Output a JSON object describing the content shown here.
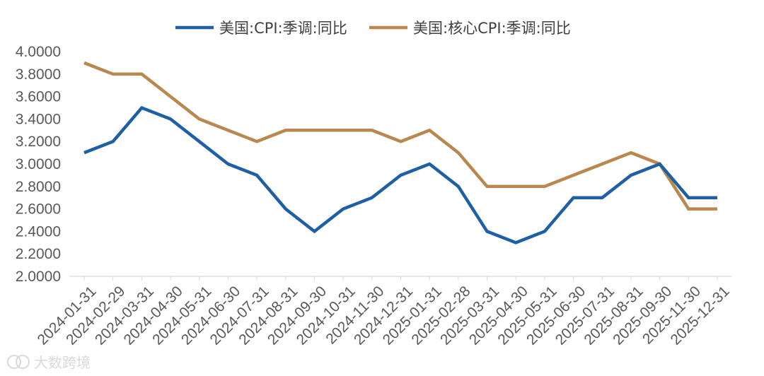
{
  "chart_data": {
    "type": "line",
    "title": "",
    "xlabel": "",
    "ylabel": "",
    "ylim": [
      2.0,
      4.0
    ],
    "yticks": [
      "2.0000",
      "2.2000",
      "2.4000",
      "2.6000",
      "2.8000",
      "3.0000",
      "3.2000",
      "3.4000",
      "3.6000",
      "3.8000",
      "4.0000"
    ],
    "grid": false,
    "legend_position": "top",
    "x": [
      "2024-01-31",
      "2024-02-29",
      "2024-03-31",
      "2024-04-30",
      "2024-05-31",
      "2024-06-30",
      "2024-07-31",
      "2024-08-31",
      "2024-09-30",
      "2024-10-31",
      "2024-11-30",
      "2024-12-31",
      "2025-01-31",
      "2025-02-28",
      "2025-03-31",
      "2025-04-30",
      "2025-05-31",
      "2025-06-30",
      "2025-07-31",
      "2025-08-31",
      "2025-09-30",
      "2025-11-30",
      "2025-12-31"
    ],
    "series": [
      {
        "name": "美国:CPI:季调:同比",
        "color": "#1f5fa6",
        "values": [
          3.1,
          3.2,
          3.5,
          3.4,
          3.2,
          3.0,
          2.9,
          2.6,
          2.4,
          2.6,
          2.7,
          2.9,
          3.0,
          2.8,
          2.4,
          2.3,
          2.4,
          2.7,
          2.7,
          2.9,
          3.0,
          2.7,
          2.7
        ]
      },
      {
        "name": "美国:核心CPI:季调:同比",
        "color": "#b8884f",
        "values": [
          3.9,
          3.8,
          3.8,
          3.6,
          3.4,
          3.3,
          3.2,
          3.3,
          3.3,
          3.3,
          3.3,
          3.2,
          3.3,
          3.1,
          2.8,
          2.8,
          2.8,
          2.9,
          3.0,
          3.1,
          3.0,
          2.6,
          2.6
        ]
      }
    ]
  },
  "watermark": {
    "text": "大数跨境",
    "icon": "logo-mark"
  }
}
